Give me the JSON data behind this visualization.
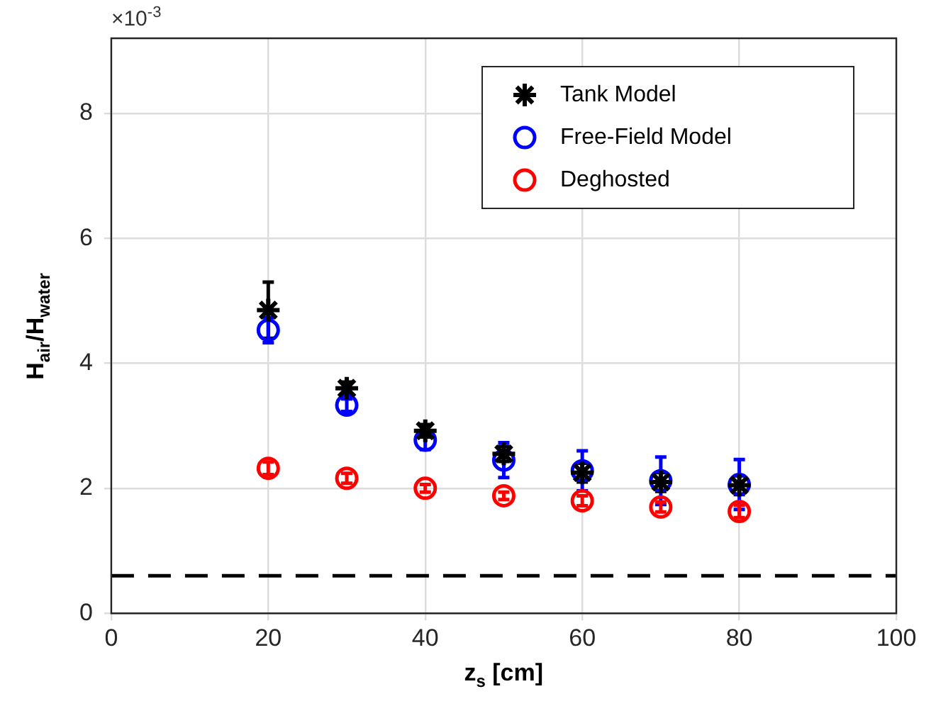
{
  "chart_data": {
    "type": "scatter",
    "xlabel": "z$_{s}$ [cm]",
    "ylabel": "H$_{air}$/H$_{water}$",
    "annotations": [
      "×10$^{-3}$"
    ],
    "x": [
      20,
      30,
      40,
      50,
      60,
      70,
      80
    ],
    "series": [
      {
        "name": "Tank Model",
        "color": "#000000",
        "marker": "cross",
        "values": [
          4.85,
          3.6,
          2.92,
          2.55,
          2.25,
          2.1,
          2.05
        ],
        "errors": [
          0.45,
          0.1,
          0.1,
          0.12,
          0.15,
          0.15,
          0.15
        ]
      },
      {
        "name": "Free-Field Model",
        "color": "#0000ff",
        "marker": "circle",
        "values": [
          4.53,
          3.33,
          2.77,
          2.45,
          2.28,
          2.12,
          2.06
        ],
        "errors": [
          0.2,
          0.1,
          0.15,
          0.28,
          0.32,
          0.38,
          0.4
        ]
      },
      {
        "name": "Deghosted",
        "color": "#ff0000",
        "marker": "circle",
        "values": [
          2.32,
          2.16,
          2.0,
          1.88,
          1.8,
          1.7,
          1.63
        ],
        "errors": [
          0.1,
          0.08,
          0.06,
          0.06,
          0.08,
          0.08,
          0.1
        ]
      }
    ],
    "xlim": [
      0,
      100
    ],
    "xticks": [
      0,
      20,
      40,
      60,
      80,
      100
    ],
    "ylim": [
      0,
      9.2
    ],
    "yticks": [
      0,
      2,
      4,
      6,
      8
    ],
    "ref_lines": [
      {
        "axis": "y",
        "value": 0.6,
        "color": "#000000",
        "line_style": "dashed"
      }
    ],
    "grid": true,
    "legend": "top right"
  }
}
